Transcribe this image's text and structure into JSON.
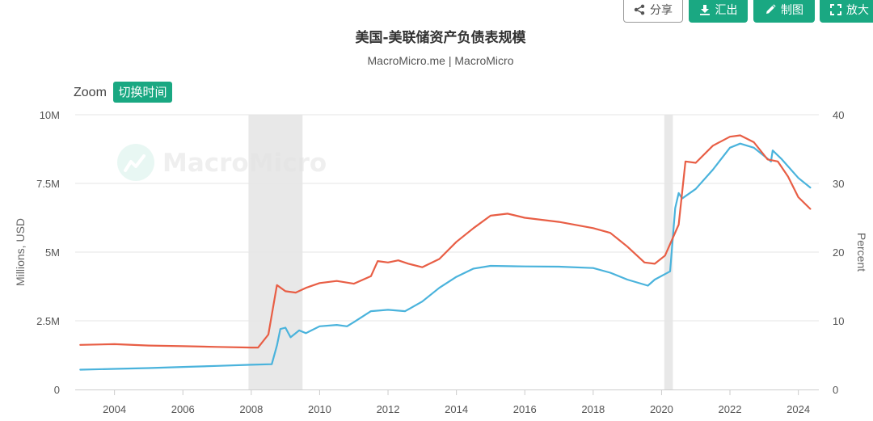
{
  "toolbar": {
    "share_label": "分享",
    "export_label": "汇出",
    "draw_label": "制图",
    "zoom_label": "放大"
  },
  "colors": {
    "accent": "#1aa882",
    "series_assets": "#4ab3dc",
    "series_rate": "#e85e45",
    "recession_band": "#e8e8e8"
  },
  "watermark": {
    "text": "MacroMicro"
  },
  "chart_data": {
    "type": "line",
    "title": "美国-美联储资产负债表规模",
    "subtitle": "MacroMicro.me | MacroMicro",
    "zoom_label": "Zoom",
    "zoom_button": "切换时间",
    "ylabel_left": "Millions, USD",
    "ylabel_right": "Percent",
    "xlim": [
      2002.85,
      2024.6
    ],
    "ylim_left": [
      0,
      10000000
    ],
    "ylim_right": [
      0,
      40
    ],
    "x_ticks": [
      2004,
      2006,
      2008,
      2010,
      2012,
      2014,
      2016,
      2018,
      2020,
      2022,
      2024
    ],
    "x_tick_labels": [
      "2004",
      "2006",
      "2008",
      "2010",
      "2012",
      "2014",
      "2016",
      "2018",
      "2020",
      "2022",
      "2024"
    ],
    "y_left_ticks": [
      0,
      2500000,
      5000000,
      7500000,
      10000000
    ],
    "y_left_tick_labels": [
      "0",
      "2.5M",
      "5M",
      "7.5M",
      "10M"
    ],
    "y_right_ticks": [
      0,
      10,
      20,
      30,
      40
    ],
    "y_right_tick_labels": [
      "0",
      "10",
      "20",
      "30",
      "40"
    ],
    "grid": true,
    "legend": "none",
    "recession_bands": [
      [
        2007.92,
        2009.5
      ],
      [
        2020.08,
        2020.33
      ]
    ],
    "series": [
      {
        "axis": "left",
        "color": "#4ab3dc",
        "points": [
          [
            2003.0,
            720000
          ],
          [
            2004.0,
            750000
          ],
          [
            2005.0,
            780000
          ],
          [
            2006.0,
            820000
          ],
          [
            2007.0,
            860000
          ],
          [
            2008.0,
            900000
          ],
          [
            2008.6,
            920000
          ],
          [
            2008.75,
            1600000
          ],
          [
            2008.85,
            2200000
          ],
          [
            2009.0,
            2250000
          ],
          [
            2009.15,
            1900000
          ],
          [
            2009.4,
            2150000
          ],
          [
            2009.6,
            2050000
          ],
          [
            2010.0,
            2300000
          ],
          [
            2010.5,
            2350000
          ],
          [
            2010.8,
            2300000
          ],
          [
            2011.0,
            2450000
          ],
          [
            2011.5,
            2850000
          ],
          [
            2012.0,
            2900000
          ],
          [
            2012.5,
            2850000
          ],
          [
            2013.0,
            3200000
          ],
          [
            2013.5,
            3700000
          ],
          [
            2014.0,
            4100000
          ],
          [
            2014.5,
            4400000
          ],
          [
            2015.0,
            4500000
          ],
          [
            2016.0,
            4480000
          ],
          [
            2017.0,
            4470000
          ],
          [
            2018.0,
            4420000
          ],
          [
            2018.5,
            4250000
          ],
          [
            2019.0,
            4000000
          ],
          [
            2019.6,
            3780000
          ],
          [
            2019.8,
            4000000
          ],
          [
            2020.1,
            4200000
          ],
          [
            2020.25,
            4300000
          ],
          [
            2020.4,
            6600000
          ],
          [
            2020.5,
            7150000
          ],
          [
            2020.6,
            6950000
          ],
          [
            2021.0,
            7300000
          ],
          [
            2021.5,
            8000000
          ],
          [
            2022.0,
            8800000
          ],
          [
            2022.3,
            8950000
          ],
          [
            2022.7,
            8800000
          ],
          [
            2023.1,
            8400000
          ],
          [
            2023.2,
            8300000
          ],
          [
            2023.25,
            8700000
          ],
          [
            2023.5,
            8400000
          ],
          [
            2024.0,
            7700000
          ],
          [
            2024.35,
            7350000
          ]
        ]
      },
      {
        "axis": "right",
        "color": "#e85e45",
        "points": [
          [
            2003.0,
            6.5
          ],
          [
            2004.0,
            6.6
          ],
          [
            2005.0,
            6.4
          ],
          [
            2006.0,
            6.3
          ],
          [
            2007.0,
            6.2
          ],
          [
            2008.0,
            6.1
          ],
          [
            2008.2,
            6.1
          ],
          [
            2008.5,
            8.0
          ],
          [
            2008.75,
            15.2
          ],
          [
            2009.0,
            14.3
          ],
          [
            2009.3,
            14.1
          ],
          [
            2009.6,
            14.8
          ],
          [
            2010.0,
            15.5
          ],
          [
            2010.5,
            15.8
          ],
          [
            2011.0,
            15.4
          ],
          [
            2011.5,
            16.5
          ],
          [
            2011.7,
            18.7
          ],
          [
            2012.0,
            18.5
          ],
          [
            2012.3,
            18.8
          ],
          [
            2012.6,
            18.3
          ],
          [
            2013.0,
            17.8
          ],
          [
            2013.5,
            19.0
          ],
          [
            2014.0,
            21.5
          ],
          [
            2014.5,
            23.5
          ],
          [
            2015.0,
            25.3
          ],
          [
            2015.5,
            25.6
          ],
          [
            2016.0,
            25.0
          ],
          [
            2017.0,
            24.4
          ],
          [
            2018.0,
            23.5
          ],
          [
            2018.5,
            22.8
          ],
          [
            2019.0,
            20.8
          ],
          [
            2019.5,
            18.5
          ],
          [
            2019.8,
            18.3
          ],
          [
            2020.1,
            19.5
          ],
          [
            2020.5,
            24.0
          ],
          [
            2020.7,
            33.2
          ],
          [
            2021.0,
            33.0
          ],
          [
            2021.5,
            35.5
          ],
          [
            2022.0,
            36.8
          ],
          [
            2022.3,
            37.0
          ],
          [
            2022.7,
            36.0
          ],
          [
            2023.1,
            33.5
          ],
          [
            2023.4,
            33.2
          ],
          [
            2023.7,
            31.0
          ],
          [
            2024.0,
            28.0
          ],
          [
            2024.35,
            26.3
          ]
        ]
      }
    ]
  }
}
